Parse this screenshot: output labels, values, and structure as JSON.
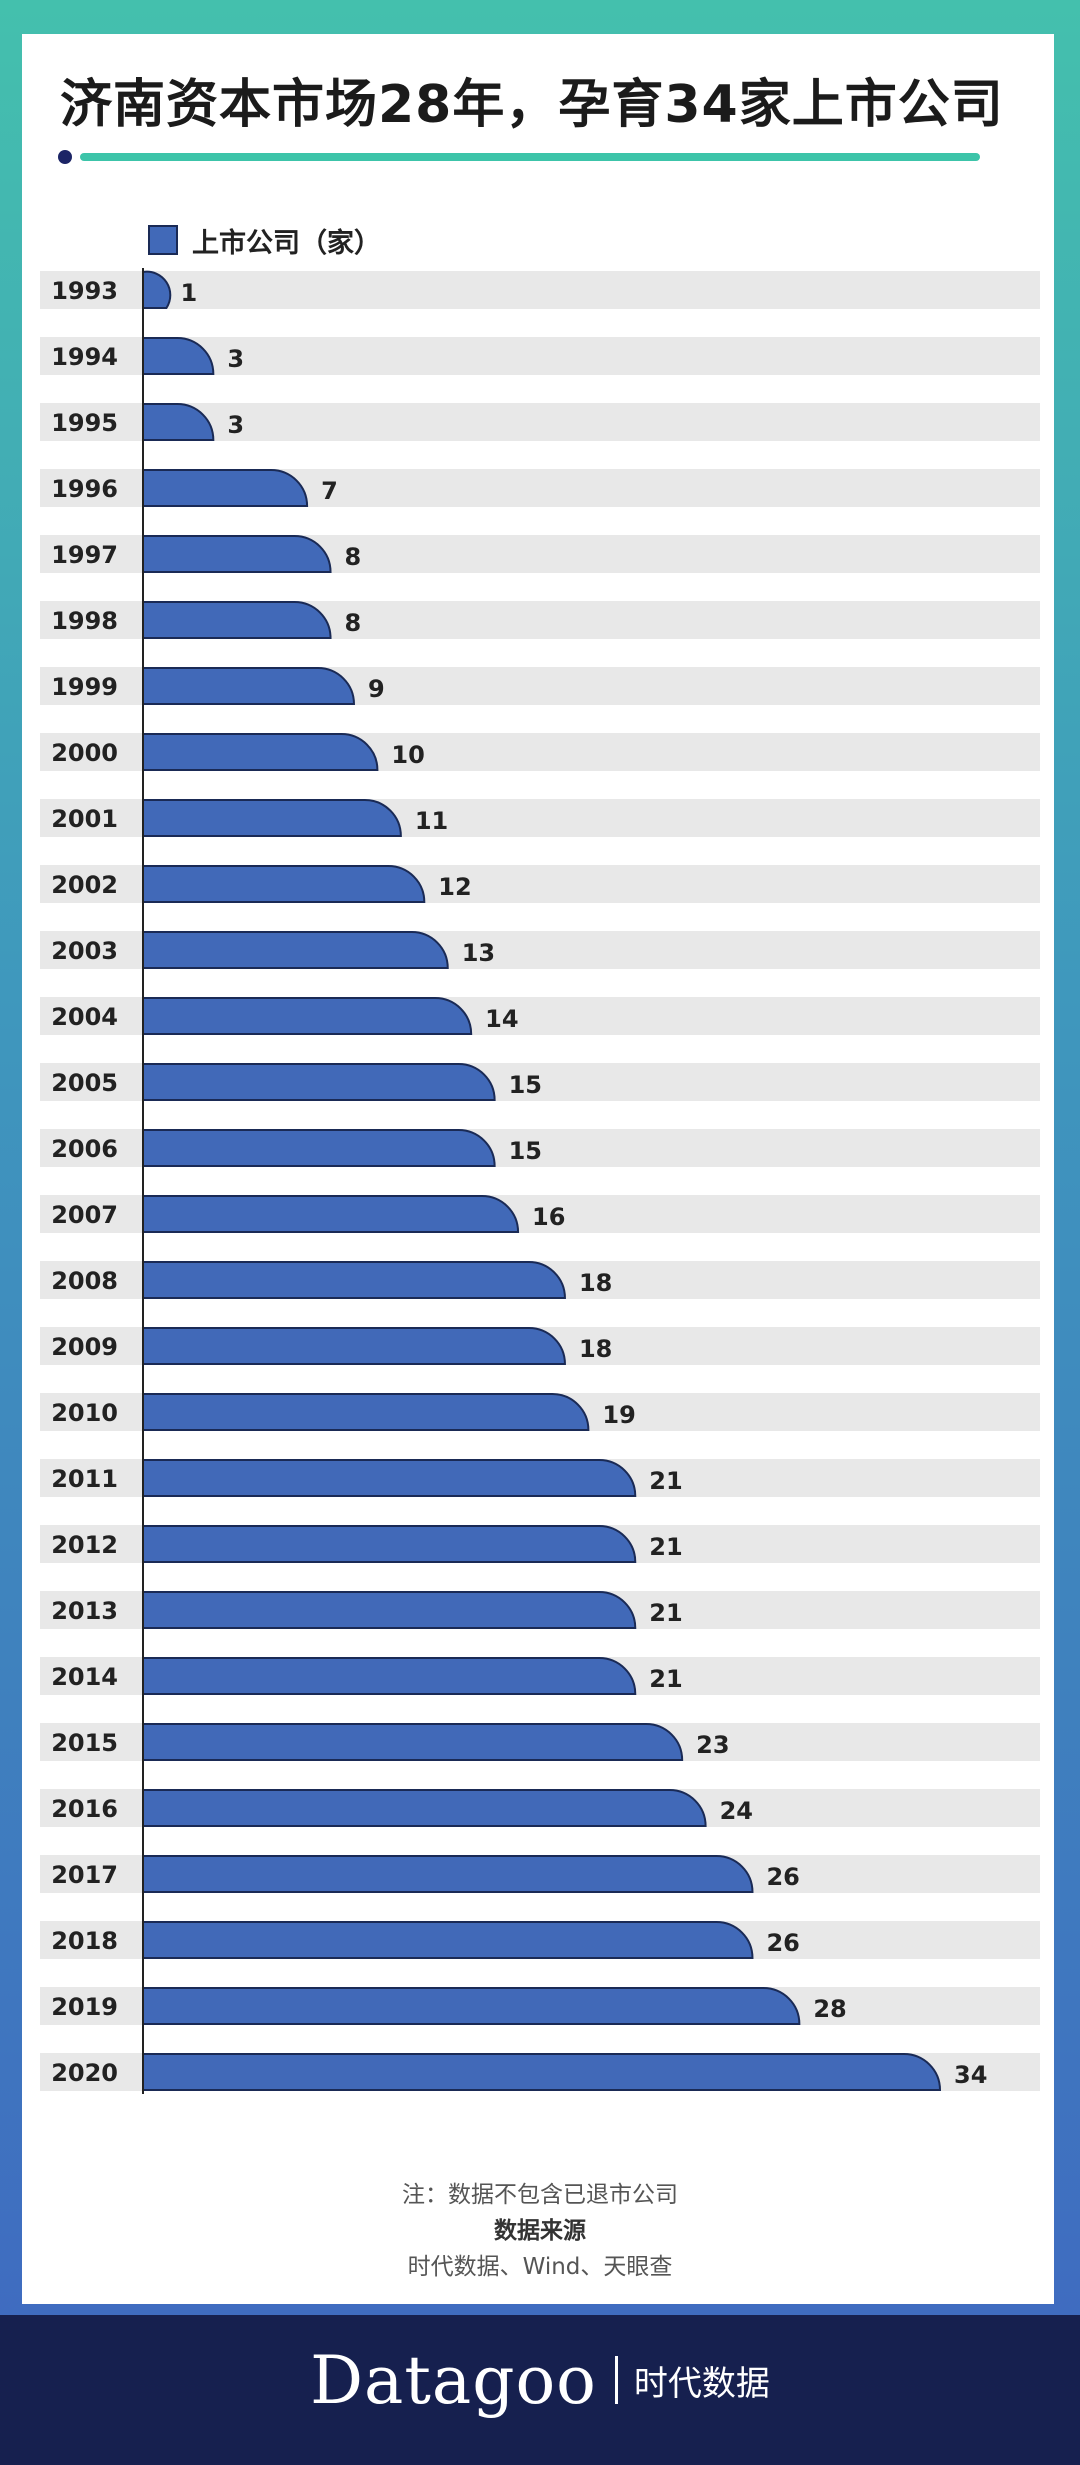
{
  "title": "济南资本市场28年，孕育34家上市公司",
  "legend_label": "上市公司（家）",
  "chart_data": {
    "type": "bar",
    "orientation": "horizontal",
    "categories": [
      "1993",
      "1994",
      "1995",
      "1996",
      "1997",
      "1998",
      "1999",
      "2000",
      "2001",
      "2002",
      "2003",
      "2004",
      "2005",
      "2006",
      "2007",
      "2008",
      "2009",
      "2010",
      "2011",
      "2012",
      "2013",
      "2014",
      "2015",
      "2016",
      "2017",
      "2018",
      "2019",
      "2020"
    ],
    "series": [
      {
        "name": "上市公司（家）",
        "values": [
          1,
          3,
          3,
          7,
          8,
          8,
          9,
          10,
          11,
          12,
          13,
          14,
          15,
          15,
          16,
          18,
          18,
          19,
          21,
          21,
          21,
          21,
          23,
          24,
          26,
          26,
          28,
          34
        ]
      }
    ],
    "xlim": [
      0,
      34
    ],
    "grid": false,
    "legend_position": "top-left",
    "colors": {
      "bar": "#4169b8",
      "bar_stroke": "#1a2a55",
      "row_band": "#e8e8e8",
      "axis": "#222222"
    }
  },
  "notes": {
    "note": "注：数据不包含已退市公司",
    "source_title": "数据来源",
    "source": "时代数据、Wind、天眼查"
  },
  "brand": {
    "logo": "Datagoo",
    "name": "时代数据"
  },
  "colors": {
    "frame_top": "#44c0ad",
    "frame_bottom": "#3f67c0",
    "footer": "#16204f",
    "title_rule": "#3cc4a9"
  }
}
